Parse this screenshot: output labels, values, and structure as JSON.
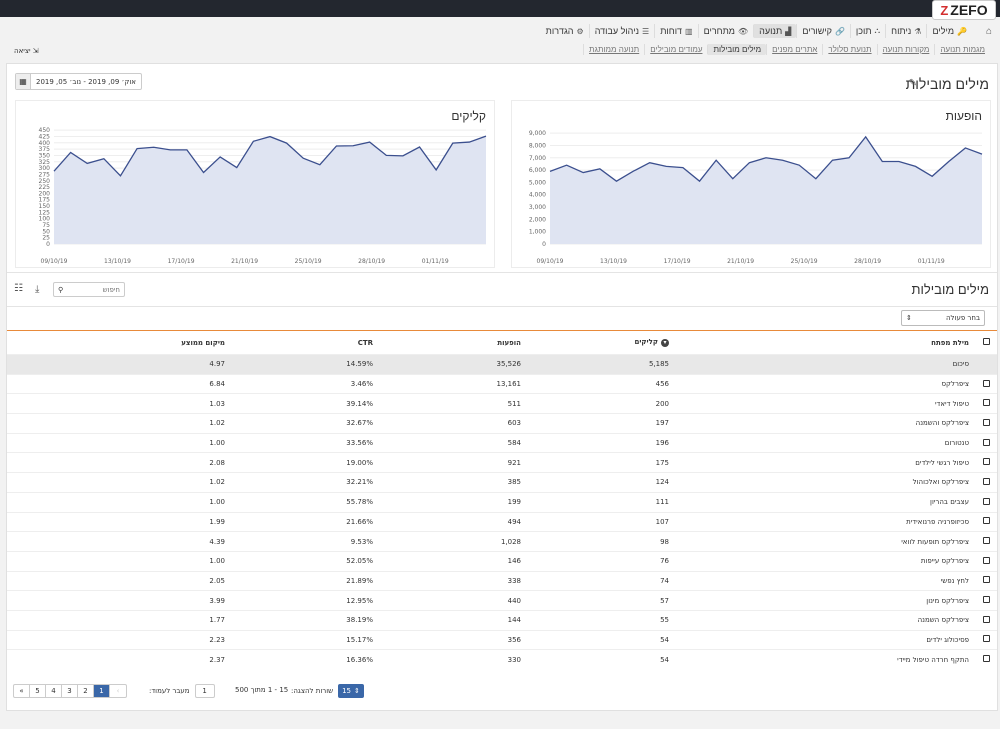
{
  "brand": {
    "logo_text": "ZEFO",
    "logo_mark": "Z"
  },
  "nav": {
    "items": [
      {
        "label": "מילים",
        "icon": "key-icon",
        "glyph": "🔑",
        "active": false
      },
      {
        "label": "ניתוח",
        "icon": "flask-icon",
        "glyph": "⚗",
        "active": false
      },
      {
        "label": "תוכן",
        "icon": "sitemap-icon",
        "glyph": "⛬",
        "active": false
      },
      {
        "label": "קישורים",
        "icon": "link-icon",
        "glyph": "🔗",
        "active": false
      },
      {
        "label": "תנועה",
        "icon": "chart-icon",
        "glyph": "▟",
        "active": true
      },
      {
        "label": "מתחרים",
        "icon": "eye-icon",
        "glyph": "👁",
        "active": false
      },
      {
        "label": "דוחות",
        "icon": "bar-chart-icon",
        "glyph": "▥",
        "active": false
      },
      {
        "label": "ניהול עבודה",
        "icon": "list-icon",
        "glyph": "☰",
        "active": false
      },
      {
        "label": "הגדרות",
        "icon": "gear-icon",
        "glyph": "⚙",
        "active": false
      }
    ]
  },
  "subnav": {
    "items": [
      {
        "label": "מגמות תנועה",
        "active": false
      },
      {
        "label": "מקורות תנועה",
        "active": false
      },
      {
        "label": "תנועת סלולר",
        "active": false
      },
      {
        "label": "אתרים מפנים",
        "active": false
      },
      {
        "label": "מילים מובילות",
        "active": true
      },
      {
        "label": "עמודים מובילים",
        "active": false
      },
      {
        "label": "תנועה ממותגת",
        "active": false
      }
    ]
  },
  "logout_label": "יציאה",
  "page": {
    "title": "מילים מובילות",
    "date_range": "אוק׳ 09, 2019 - נוב׳ 05, 2019"
  },
  "charts": {
    "impressions_title": "הופעות",
    "clicks_title": "קליקים"
  },
  "chart_data": [
    {
      "type": "area",
      "title": "הופעות",
      "x_ticks": [
        "09/10/19",
        "13/10/19",
        "17/10/19",
        "21/10/19",
        "25/10/19",
        "28/10/19",
        "01/11/19"
      ],
      "y_ticks": [
        "0",
        "1,000",
        "2,000",
        "3,000",
        "4,000",
        "5,000",
        "6,000",
        "7,000",
        "8,000",
        "9,000"
      ],
      "ylim": [
        0,
        9500
      ],
      "grid": true,
      "series": [
        {
          "values": [
            5900,
            6400,
            5800,
            6100,
            5100,
            5900,
            6600,
            6300,
            6200,
            5100,
            6800,
            5300,
            6600,
            7000,
            6800,
            6400,
            5300,
            6800,
            7000,
            8700,
            6700,
            6700,
            6300,
            5500,
            6700,
            7800,
            7300
          ]
        }
      ]
    },
    {
      "type": "area",
      "title": "קליקים",
      "x_ticks": [
        "09/10/19",
        "13/10/19",
        "17/10/19",
        "21/10/19",
        "25/10/19",
        "28/10/19",
        "01/11/19"
      ],
      "y_ticks": [
        "0",
        "25",
        "50",
        "75",
        "100",
        "125",
        "150",
        "175",
        "200",
        "225",
        "250",
        "275",
        "300",
        "325",
        "350",
        "375",
        "400",
        "425",
        "450"
      ],
      "ylim": [
        0,
        450
      ],
      "grid": true,
      "series": [
        {
          "values": [
            280,
            352,
            310,
            328,
            262,
            367,
            372,
            362,
            362,
            275,
            335,
            294,
            395,
            413,
            388,
            330,
            305,
            377,
            378,
            392,
            341,
            339,
            373,
            285,
            388,
            392,
            415
          ]
        }
      ]
    }
  ],
  "table": {
    "section_title": "מילים מובילות",
    "search_placeholder": "חיפוש",
    "bulk_action_label": "בחר פעולה",
    "headers": {
      "keyword": "מילת מפתח",
      "clicks": "קליקים",
      "impressions": "הופעות",
      "ctr": "CTR",
      "position": "מיקום ממוצע"
    },
    "summary": {
      "keyword": "סיכום",
      "clicks": "5,185",
      "impressions": "35,526",
      "ctr": "14.59%",
      "position": "4.97"
    },
    "rows": [
      {
        "keyword": "ציפרלקס",
        "clicks": "456",
        "impressions": "13,161",
        "ctr": "3.46%",
        "position": "6.84"
      },
      {
        "keyword": "טיפול דיאדי",
        "clicks": "200",
        "impressions": "511",
        "ctr": "39.14%",
        "position": "1.03"
      },
      {
        "keyword": "ציפרלקס והשמנה",
        "clicks": "197",
        "impressions": "603",
        "ctr": "32.67%",
        "position": "1.02"
      },
      {
        "keyword": "טנטורום",
        "clicks": "196",
        "impressions": "584",
        "ctr": "33.56%",
        "position": "1.00"
      },
      {
        "keyword": "טיפול רגשי לילדים",
        "clicks": "175",
        "impressions": "921",
        "ctr": "19.00%",
        "position": "2.08"
      },
      {
        "keyword": "ציפרלקס ואלכוהול",
        "clicks": "124",
        "impressions": "385",
        "ctr": "32.21%",
        "position": "1.02"
      },
      {
        "keyword": "עצבים בהריון",
        "clicks": "111",
        "impressions": "199",
        "ctr": "55.78%",
        "position": "1.00"
      },
      {
        "keyword": "סכיזופרניה פרנואידית",
        "clicks": "107",
        "impressions": "494",
        "ctr": "21.66%",
        "position": "1.99"
      },
      {
        "keyword": "ציפרלקס תופעות לוואי",
        "clicks": "98",
        "impressions": "1,028",
        "ctr": "9.53%",
        "position": "4.39"
      },
      {
        "keyword": "ציפרלקס עייפות",
        "clicks": "76",
        "impressions": "146",
        "ctr": "52.05%",
        "position": "1.00"
      },
      {
        "keyword": "לחץ נפשי",
        "clicks": "74",
        "impressions": "338",
        "ctr": "21.89%",
        "position": "2.05"
      },
      {
        "keyword": "ציפרלקס מינון",
        "clicks": "57",
        "impressions": "440",
        "ctr": "12.95%",
        "position": "3.99"
      },
      {
        "keyword": "ציפרלקס השמנה",
        "clicks": "55",
        "impressions": "144",
        "ctr": "38.19%",
        "position": "1.77"
      },
      {
        "keyword": "פסיכולוג ילדים",
        "clicks": "54",
        "impressions": "356",
        "ctr": "15.17%",
        "position": "2.23"
      },
      {
        "keyword": "התקף חרדה טיפול מיידי",
        "clicks": "54",
        "impressions": "330",
        "ctr": "16.36%",
        "position": "2.37"
      }
    ]
  },
  "pagination": {
    "first": "«",
    "prev": "‹",
    "pages": [
      "1",
      "2",
      "3",
      "4",
      "5"
    ],
    "current": "1",
    "jump_label": "מעבר לעמוד:",
    "jump_value": "1",
    "range_text": "15 - 1 מתוך 500",
    "per_page_label": "שורות להצגה:",
    "per_page_value": "15"
  },
  "colors": {
    "accent": "#3a67a8",
    "chart_line": "#3b4f8e",
    "chart_fill": "#dfe4f2",
    "table_header_border": "#e88a3a"
  }
}
